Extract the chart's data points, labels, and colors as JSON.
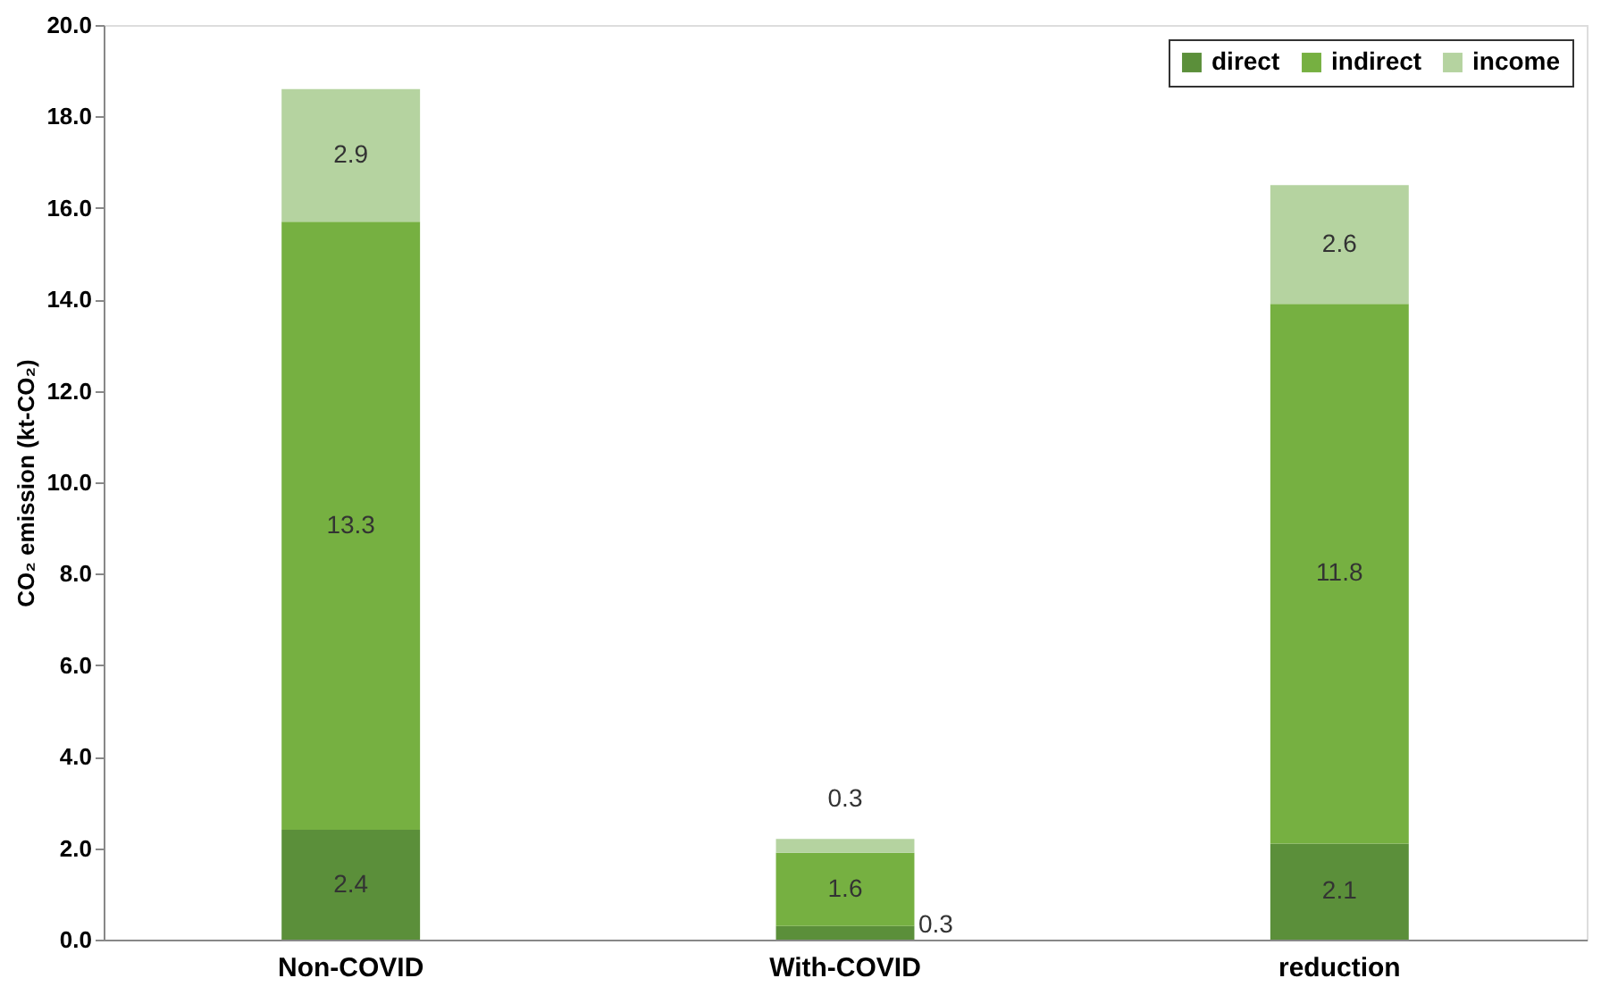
{
  "chart_data": {
    "type": "bar",
    "stacked": true,
    "categories": [
      "Non-COVID",
      "With-COVID",
      "reduction"
    ],
    "ylabel": "CO₂ emission (kt-CO₂)",
    "ylim": [
      0,
      20
    ],
    "yticks": [
      {
        "value": 0,
        "label": "0.0"
      },
      {
        "value": 2,
        "label": "2.0"
      },
      {
        "value": 4,
        "label": "4.0"
      },
      {
        "value": 6,
        "label": "6.0"
      },
      {
        "value": 8,
        "label": "8.0"
      },
      {
        "value": 10,
        "label": "10.0"
      },
      {
        "value": 12,
        "label": "12.0"
      },
      {
        "value": 14,
        "label": "14.0"
      },
      {
        "value": 16,
        "label": "16.0"
      },
      {
        "value": 18,
        "label": "18.0"
      },
      {
        "value": 20,
        "label": "20.0"
      }
    ],
    "series": [
      {
        "name": "direct",
        "color": "#5b8f3a",
        "values": [
          2.4,
          0.3,
          2.1
        ]
      },
      {
        "name": "indirect",
        "color": "#76b041",
        "values": [
          13.3,
          1.6,
          11.8
        ]
      },
      {
        "name": "income",
        "color": "#b5d3a0",
        "values": [
          2.9,
          0.3,
          2.6
        ]
      }
    ],
    "data_labels": true,
    "legend": "top right",
    "grid": false
  }
}
